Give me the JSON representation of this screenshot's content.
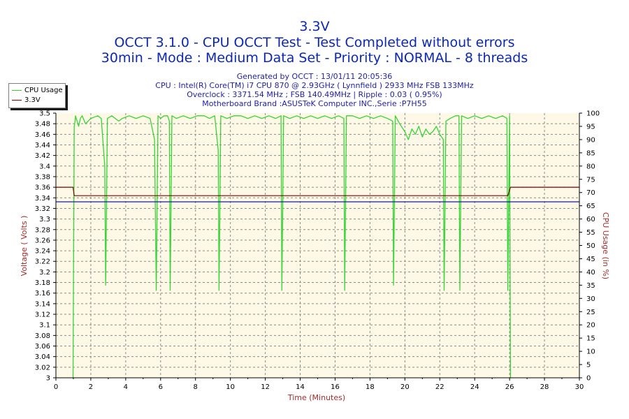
{
  "chart_data": {
    "type": "line",
    "title": "3.3V",
    "subtitle_lines": [
      "OCCT 3.1.0 - CPU OCCT Test - Test Completed without errors",
      "30min - Mode : Medium Data Set - Priority : NORMAL - 8 threads"
    ],
    "info_lines": [
      "Generated by OCCT : 13/01/11 20:05:36",
      "CPU : Intel(R) Core(TM) i7 CPU 870 @ 2.93GHz ( Lynnfield ) 2933 MHz FSB 133MHz",
      "Overclock : 3371.54 MHz ; FSB 140.49MHz | Ripple : 0.03 ( 0.95%)",
      "Motherboard Brand :ASUSTeK Computer INC.,Serie :P7H55"
    ],
    "xlabel": "Time (Minutes)",
    "ylabel": "Voltage ( Volts )",
    "y2label": "CPU Usage (in %)",
    "xlim": [
      0,
      30
    ],
    "ylim": [
      3,
      3.5
    ],
    "y2lim": [
      0,
      100
    ],
    "x_ticks": [
      "0",
      "2",
      "4",
      "6",
      "8",
      "10",
      "12",
      "14",
      "16",
      "18",
      "20",
      "22",
      "24",
      "26",
      "28",
      "30"
    ],
    "y_ticks": [
      "3",
      "3.02",
      "3.04",
      "3.06",
      "3.08",
      "3.1",
      "3.12",
      "3.14",
      "3.16",
      "3.18",
      "3.2",
      "3.22",
      "3.24",
      "3.26",
      "3.28",
      "3.3",
      "3.32",
      "3.34",
      "3.36",
      "3.38",
      "3.4",
      "3.42",
      "3.44",
      "3.46",
      "3.48",
      "3.5"
    ],
    "y2_ticks": [
      "0",
      "5",
      "10",
      "15",
      "20",
      "25",
      "30",
      "35",
      "40",
      "45",
      "50",
      "55",
      "60",
      "65",
      "70",
      "75",
      "80",
      "85",
      "90",
      "95",
      "100"
    ],
    "grid": true,
    "legend_position": "top-left",
    "colors": {
      "cpu_usage": "#33d633",
      "voltage": "#800000",
      "reference": "#1a1a9a",
      "plot_background": "#fdf9e6",
      "grid": "#8a8a8a",
      "title": "#0b28b4",
      "axis_label": "#a52a2a"
    },
    "series": [
      {
        "name": "3.3V",
        "axis": "left",
        "x": [
          0,
          0.98,
          1.05,
          25.9,
          26.05,
          30
        ],
        "values": [
          3.36,
          3.36,
          3.344,
          3.344,
          3.36,
          3.36
        ]
      },
      {
        "name": "CPU Usage",
        "axis": "right",
        "x": [
          0.98,
          1.05,
          1.1,
          1.12,
          1.3,
          1.4,
          1.5,
          1.7,
          2.0,
          2.4,
          2.6,
          2.8,
          2.85,
          2.95,
          3.2,
          3.6,
          3.8,
          4.2,
          4.6,
          5.0,
          5.4,
          5.65,
          5.75,
          5.85,
          6.0,
          6.2,
          6.4,
          6.5,
          6.55,
          6.65,
          6.9,
          7.3,
          7.7,
          8.1,
          8.5,
          8.8,
          9.1,
          9.3,
          9.35,
          9.45,
          9.8,
          10.2,
          10.6,
          11.0,
          11.4,
          11.8,
          12.2,
          12.6,
          12.9,
          12.95,
          13.05,
          13.4,
          13.8,
          14.2,
          14.6,
          15.0,
          15.4,
          15.8,
          16.2,
          16.5,
          16.55,
          16.65,
          17.0,
          17.4,
          17.8,
          18.2,
          18.6,
          19.0,
          19.3,
          19.35,
          19.45,
          19.7,
          20.0,
          20.2,
          20.4,
          20.6,
          20.8,
          21.0,
          21.2,
          21.4,
          21.6,
          21.8,
          22.0,
          22.2,
          22.25,
          22.35,
          22.6,
          22.9,
          23.1,
          23.15,
          23.25,
          23.6,
          24.0,
          24.4,
          24.8,
          25.2,
          25.6,
          25.85,
          25.9,
          26.0,
          26.05,
          26.1
        ],
        "values": [
          0,
          95,
          97,
          99,
          95,
          98,
          99,
          96,
          98,
          99,
          98,
          80,
          35,
          98,
          99,
          97,
          98,
          99,
          98,
          99,
          98,
          90,
          33,
          99,
          98,
          99,
          99,
          97,
          33,
          99,
          98,
          99,
          98,
          99,
          99,
          98,
          99,
          86,
          33,
          99,
          98,
          99,
          99,
          98,
          99,
          98,
          99,
          98,
          99,
          33,
          99,
          98,
          99,
          98,
          99,
          98,
          99,
          98,
          99,
          98,
          33,
          99,
          99,
          98,
          99,
          98,
          99,
          98,
          97,
          35,
          99,
          96,
          93,
          90,
          94,
          92,
          95,
          91,
          94,
          92,
          93,
          95,
          92,
          90,
          33,
          97,
          98,
          99,
          99,
          33,
          99,
          98,
          99,
          98,
          99,
          98,
          99,
          98,
          33,
          99,
          0,
          0
        ]
      },
      {
        "name": "",
        "axis": "left",
        "x": [
          0,
          30
        ],
        "values": [
          3.3325,
          3.3325
        ]
      }
    ]
  }
}
